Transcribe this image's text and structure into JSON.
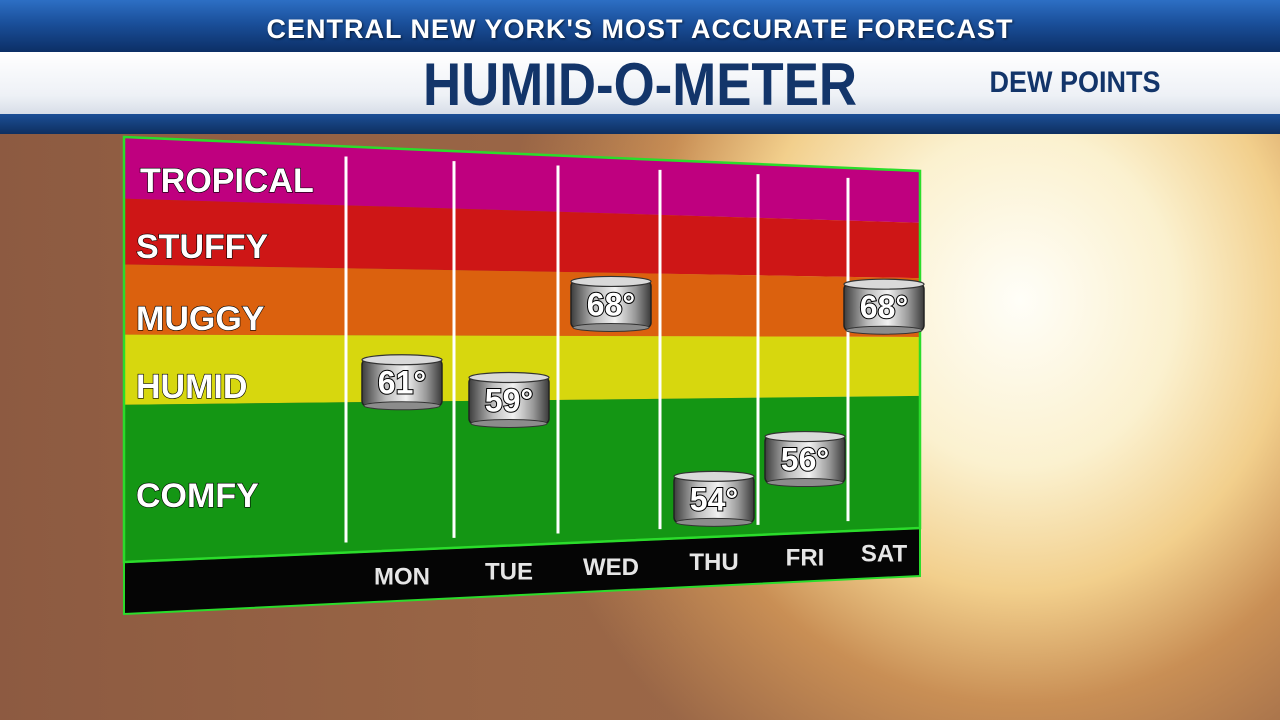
{
  "header": {
    "banner": "CENTRAL NEW YORK'S MOST ACCURATE FORECAST",
    "title": "HUMID-O-METER",
    "subtitle": "DEW POINTS"
  },
  "chart_data": {
    "type": "scatter",
    "categories": [
      "MON",
      "TUE",
      "WED",
      "THU",
      "FRI",
      "SAT"
    ],
    "values": [
      61,
      59,
      68,
      54,
      56,
      68
    ],
    "value_labels": [
      "61°",
      "59°",
      "68°",
      "54°",
      "56°",
      "68°"
    ],
    "bands": [
      {
        "label": "TROPICAL",
        "color": "#d0008a"
      },
      {
        "label": "STUFFY",
        "color": "#e01818"
      },
      {
        "label": "MUGGY",
        "color": "#ee6a10"
      },
      {
        "label": "HUMID",
        "color": "#eaea10"
      },
      {
        "label": "COMFY",
        "color": "#16a316"
      }
    ],
    "ylim": [
      50,
      80
    ],
    "grid": true
  }
}
